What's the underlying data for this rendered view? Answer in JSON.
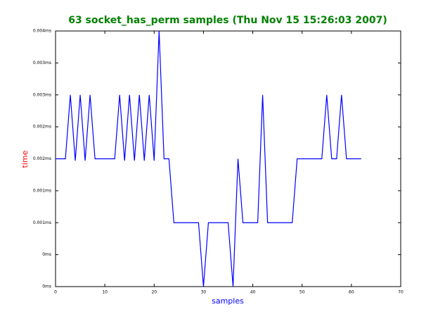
{
  "chart_data": {
    "type": "line",
    "title": "63 socket_has_perm samples (Thu Nov 15 15:26:03 2007)",
    "xlabel": "samples",
    "ylabel": "time",
    "x": [
      0,
      1,
      2,
      3,
      4,
      5,
      6,
      7,
      8,
      9,
      10,
      11,
      12,
      13,
      14,
      15,
      16,
      17,
      18,
      19,
      20,
      21,
      22,
      23,
      24,
      25,
      26,
      27,
      28,
      29,
      30,
      31,
      32,
      33,
      34,
      35,
      36,
      37,
      38,
      39,
      40,
      41,
      42,
      43,
      44,
      45,
      46,
      47,
      48,
      49,
      50,
      51,
      52,
      53,
      54,
      55,
      56,
      57,
      58,
      59,
      60,
      61,
      62
    ],
    "series": [
      {
        "color": "#0000ff",
        "values": [
          0.002,
          0.002,
          0.002,
          0.003,
          0.00197,
          0.003,
          0.00197,
          0.003,
          0.002,
          0.002,
          0.002,
          0.002,
          0.002,
          0.003,
          0.00197,
          0.003,
          0.00197,
          0.003,
          0.00197,
          0.003,
          0.00197,
          0.004,
          0.002,
          0.002,
          0.001,
          0.001,
          0.001,
          0.001,
          0.001,
          0.001,
          0,
          0.001,
          0.001,
          0.001,
          0.001,
          0.001,
          0,
          0.002,
          0.001,
          0.001,
          0.001,
          0.001,
          0.003,
          0.001,
          0.001,
          0.001,
          0.001,
          0.001,
          0.001,
          0.002,
          0.002,
          0.002,
          0.002,
          0.002,
          0.002,
          0.003,
          0.002,
          0.002,
          0.003,
          0.002,
          0.002,
          0.002,
          0.002
        ]
      }
    ],
    "xlim": [
      0,
      70
    ],
    "xticks": [
      0,
      10,
      20,
      30,
      40,
      50,
      60,
      70
    ],
    "ylim": [
      0,
      0.004
    ],
    "yticks": [
      {
        "value": 0,
        "label": "0ms"
      },
      {
        "value": 0.0005,
        "label": "0ms"
      },
      {
        "value": 0.001,
        "label": "0.001ms"
      },
      {
        "value": 0.0015,
        "label": "0.001ms"
      },
      {
        "value": 0.002,
        "label": "0.002ms"
      },
      {
        "value": 0.0025,
        "label": "0.002ms"
      },
      {
        "value": 0.003,
        "label": "0.003ms"
      },
      {
        "value": 0.0035,
        "label": "0.003ms"
      },
      {
        "value": 0.004,
        "label": "0.004ms"
      }
    ],
    "title_color": "#008000",
    "xlabel_color": "#0000ff",
    "ylabel_color": "#ff0000"
  }
}
